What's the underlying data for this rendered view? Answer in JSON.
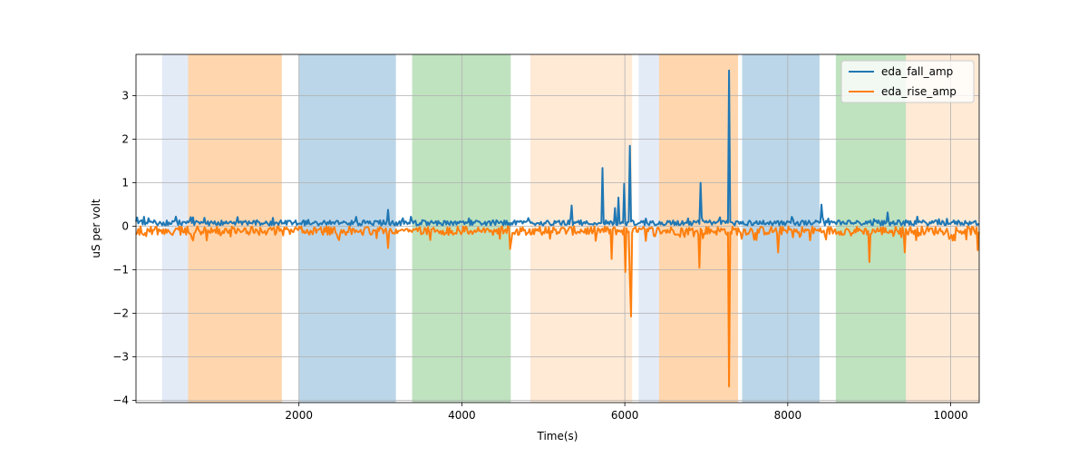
{
  "chart_data": {
    "type": "line",
    "title": "",
    "xlabel": "Time(s)",
    "ylabel": "uS per volt",
    "xlim": [
      0,
      10350
    ],
    "ylim": [
      -4.05,
      3.95
    ],
    "grid": true,
    "legend_position": "top-right",
    "x_ticks": [
      2000,
      4000,
      6000,
      8000,
      10000
    ],
    "y_ticks": [
      -4,
      -3,
      -2,
      -1,
      0,
      1,
      2,
      3
    ],
    "x_tick_labels": [
      "2000",
      "4000",
      "6000",
      "8000",
      "10000"
    ],
    "y_tick_labels": [
      "−4",
      "−3",
      "−2",
      "−1",
      "0",
      "1",
      "2",
      "3"
    ],
    "bands": [
      {
        "start": 320,
        "end": 640,
        "color": "#aec7e8",
        "opacity": 0.35
      },
      {
        "start": 640,
        "end": 1790,
        "color": "#ffbb78",
        "opacity": 0.6
      },
      {
        "start": 2000,
        "end": 3190,
        "color": "#1f77b4",
        "opacity": 0.3
      },
      {
        "start": 3390,
        "end": 4600,
        "color": "#2ca02c",
        "opacity": 0.3
      },
      {
        "start": 4840,
        "end": 6090,
        "color": "#ffbb78",
        "opacity": 0.3
      },
      {
        "start": 6170,
        "end": 6420,
        "color": "#aec7e8",
        "opacity": 0.35
      },
      {
        "start": 6420,
        "end": 7390,
        "color": "#ffbb78",
        "opacity": 0.6
      },
      {
        "start": 7440,
        "end": 8390,
        "color": "#1f77b4",
        "opacity": 0.3
      },
      {
        "start": 8590,
        "end": 9450,
        "color": "#2ca02c",
        "opacity": 0.3
      },
      {
        "start": 9450,
        "end": 10350,
        "color": "#ffbb78",
        "opacity": 0.3
      }
    ],
    "series": [
      {
        "name": "eda_fall_amp",
        "color": "#1f77b4",
        "baseline": 0.08,
        "noise": 0.06,
        "peaks": [
          {
            "x": 100,
            "y": 0.22
          },
          {
            "x": 3100,
            "y": 0.38
          },
          {
            "x": 5350,
            "y": 0.48
          },
          {
            "x": 5720,
            "y": 1.34
          },
          {
            "x": 5880,
            "y": 0.42
          },
          {
            "x": 5920,
            "y": 0.66
          },
          {
            "x": 5990,
            "y": 0.98
          },
          {
            "x": 6060,
            "y": 1.85
          },
          {
            "x": 6930,
            "y": 1.0
          },
          {
            "x": 7280,
            "y": 3.58
          },
          {
            "x": 8420,
            "y": 0.5
          },
          {
            "x": 9220,
            "y": 0.32
          }
        ]
      },
      {
        "name": "eda_rise_amp",
        "color": "#ff7f0e",
        "baseline": -0.1,
        "noise": 0.1,
        "peaks": [
          {
            "x": 3100,
            "y": -0.5
          },
          {
            "x": 4590,
            "y": -0.52
          },
          {
            "x": 5840,
            "y": -0.75
          },
          {
            "x": 6000,
            "y": -1.05
          },
          {
            "x": 6060,
            "y": -1.2
          },
          {
            "x": 6070,
            "y": -2.07
          },
          {
            "x": 6920,
            "y": -0.95
          },
          {
            "x": 7280,
            "y": -3.68
          },
          {
            "x": 7880,
            "y": -0.6
          },
          {
            "x": 9000,
            "y": -0.82
          },
          {
            "x": 9440,
            "y": -0.6
          },
          {
            "x": 10330,
            "y": -0.55
          }
        ]
      }
    ]
  }
}
